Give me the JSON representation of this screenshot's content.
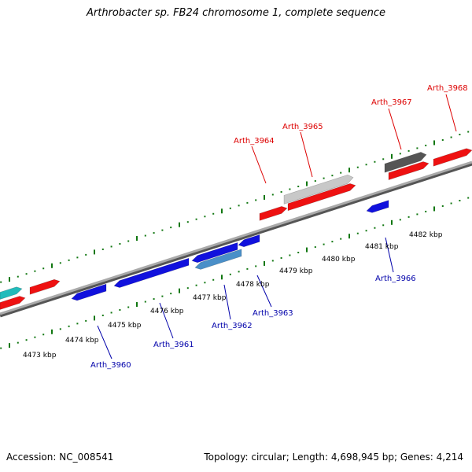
{
  "title": "Arthrobacter sp. FB24 chromosome 1, complete sequence",
  "footer": {
    "accession": "Accession: NC_008541",
    "summary": "Topology: circular; Length: 4,698,945 bp; Genes: 4,214"
  },
  "colors": {
    "forward_gene": "#ee1111",
    "reverse_gene": "#1111dd",
    "other_forward": "#22bbbb",
    "pseudo_light": "#c8c8c8",
    "pseudo_dark": "#555555",
    "backbone": "#888888",
    "tick": "#117711",
    "forward_label": "#dd0000",
    "reverse_label": "#0000aa"
  },
  "scale_labels": [
    "4473 kbp",
    "4474 kbp",
    "4475 kbp",
    "4476 kbp",
    "4477 kbp",
    "4478 kbp",
    "4479 kbp",
    "4480 kbp",
    "4481 kbp",
    "4482 kbp"
  ],
  "gene_labels": {
    "forward": [
      "Arth_3964",
      "Arth_3965",
      "Arth_3967",
      "Arth_3968"
    ],
    "reverse": [
      "Arth_3960",
      "Arth_3961",
      "Arth_3962",
      "Arth_3963",
      "Arth_3966"
    ]
  }
}
